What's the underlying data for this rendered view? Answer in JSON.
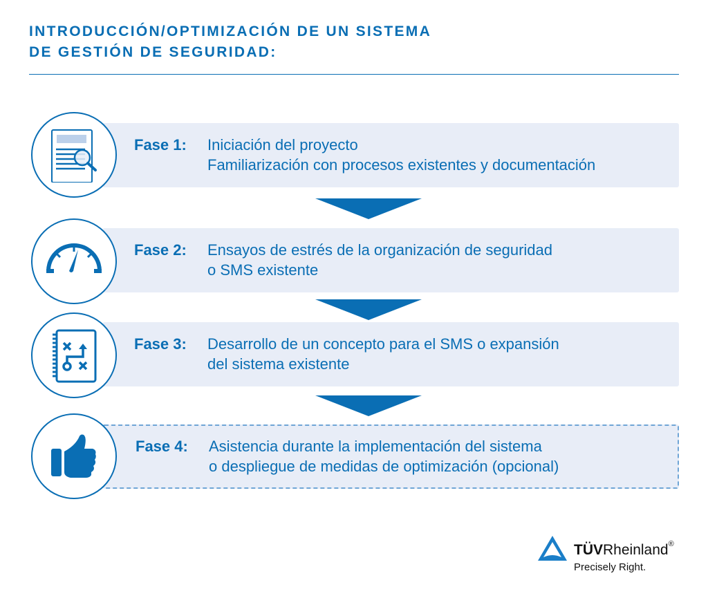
{
  "title": {
    "line1": "INTRODUCCIÓN/OPTIMIZACIÓN DE UN SISTEMA",
    "line2": "DE GESTIÓN DE SEGURIDAD:"
  },
  "phases": [
    {
      "label": "Fase 1:",
      "line1": "Iniciación del proyecto",
      "line2": "Familiarización con procesos existentes y documentación",
      "icon": "document-magnifier-icon"
    },
    {
      "label": "Fase 2:",
      "line1": "Ensayos de estrés de la organización de seguridad",
      "line2": "o SMS existente",
      "icon": "speedometer-icon"
    },
    {
      "label": "Fase 3:",
      "line1": "Desarrollo de un concepto para el SMS o expansión",
      "line2": "del sistema existente",
      "icon": "strategy-notebook-icon"
    },
    {
      "label": "Fase 4:",
      "line1": "Asistencia durante la implementación del sistema",
      "line2": "o despliegue de medidas de optimización (opcional)",
      "icon": "thumbs-up-icon",
      "optional": true
    }
  ],
  "logo": {
    "brand_bold": "TÜV",
    "brand_rest": "Rheinland",
    "registered": "®",
    "tagline": "Precisely Right."
  },
  "colors": {
    "primary": "#0a6eb4",
    "box": "#e8edf7",
    "dashed": "#6fa5d6"
  }
}
